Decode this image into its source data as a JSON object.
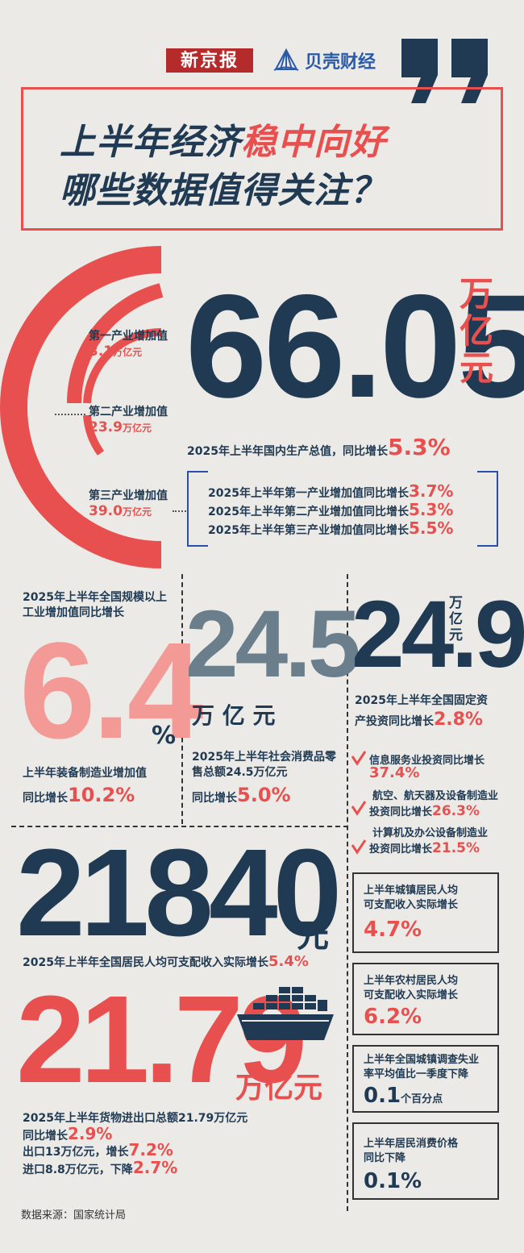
{
  "header": {
    "logo_xjb": "新京报",
    "logo_bk": "贝壳财经",
    "title_line1_a": "上半年经济",
    "title_line1_b": "稳中向好",
    "title_line2": "哪些数据值得关注？"
  },
  "gdp": {
    "value": "66.05",
    "unit_1": "万",
    "unit_2": "亿",
    "unit_3": "元",
    "caption": "2025年上半年国内生产总值，同比增长",
    "growth": "5.3%",
    "sectors": [
      {
        "label": "第一产业增加值",
        "value": "3.1",
        "unit": "万亿元"
      },
      {
        "label": "第二产业增加值",
        "value": "23.9",
        "unit": "万亿元"
      },
      {
        "label": "第三产业增加值",
        "value": "39.0",
        "unit": "万亿元"
      }
    ],
    "growth_lines": [
      {
        "text": "2025年上半年第一产业增加值同比增长",
        "value": "3.7%"
      },
      {
        "text": "2025年上半年第二产业增加值同比增长",
        "value": "5.3%"
      },
      {
        "text": "2025年上半年第三产业增加值同比增长",
        "value": "5.5%"
      }
    ]
  },
  "industry": {
    "caption": "2025年上半年全国规模以上工业增加值同比增长",
    "value": "6.4",
    "unit": "%",
    "sub_1": "上半年装备制造业增加值",
    "sub_2": "同比增长",
    "sub_value": "10.2%"
  },
  "retail": {
    "value": "24.5",
    "unit": "万 亿 元",
    "caption": "2025年上半年社会消费品零售总额24.5万亿元",
    "sub": "同比增长",
    "sub_value": "5.0%"
  },
  "investment": {
    "value_a": "24",
    "value_b": ".9",
    "unit_1": "万",
    "unit_2": "亿",
    "unit_3": "元",
    "caption_1": "2025年上半年全国固定资",
    "caption_2": "产投资同比增长",
    "caption_value": "2.8%",
    "items": [
      {
        "line1": "信息服务业投资同比增长",
        "line2": "",
        "value": "37.4%"
      },
      {
        "line1": "航空、航天器及设备制造业",
        "line2": "投资同比增长",
        "value": "26.3%"
      },
      {
        "line1": "计算机及办公设备制造业",
        "line2": "投资同比增长",
        "value": "21.5%"
      }
    ]
  },
  "income": {
    "value": "21840",
    "unit": "元",
    "caption": "2025年上半年全国居民人均可支配收入实际增长",
    "growth": "5.4%"
  },
  "trade": {
    "value": "21.79",
    "unit": "万亿元",
    "caption": "2025年上半年货物进出口总额21.79万亿元",
    "line1": "同比增长",
    "line1_value": "2.9%",
    "line2": "出口13万亿元，增长",
    "line2_value": "7.2%",
    "line3": "进口8.8万亿元，下降",
    "line3_value": "2.7%"
  },
  "side_boxes": [
    {
      "t1": "上半年城镇居民人均",
      "t2": "可支配收入实际增长",
      "value": "4.7%",
      "suffix": ""
    },
    {
      "t1": "上半年农村居民人均",
      "t2": "可支配收入实际增长",
      "value": "6.2%",
      "suffix": ""
    },
    {
      "t1": "上半年全国城镇调查失业",
      "t2": "率平均值比一季度下降",
      "value": "0.1",
      "suffix": "个百分点"
    },
    {
      "t1": "上半年居民消费价格",
      "t2": "同比下降",
      "value": "0.1%",
      "suffix": ""
    }
  ],
  "source": "数据来源：国家统计局",
  "colors": {
    "navy": "#1f3a52",
    "red": "#e8504f",
    "pink": "#f39a96",
    "gray": "#6b7e8c"
  }
}
